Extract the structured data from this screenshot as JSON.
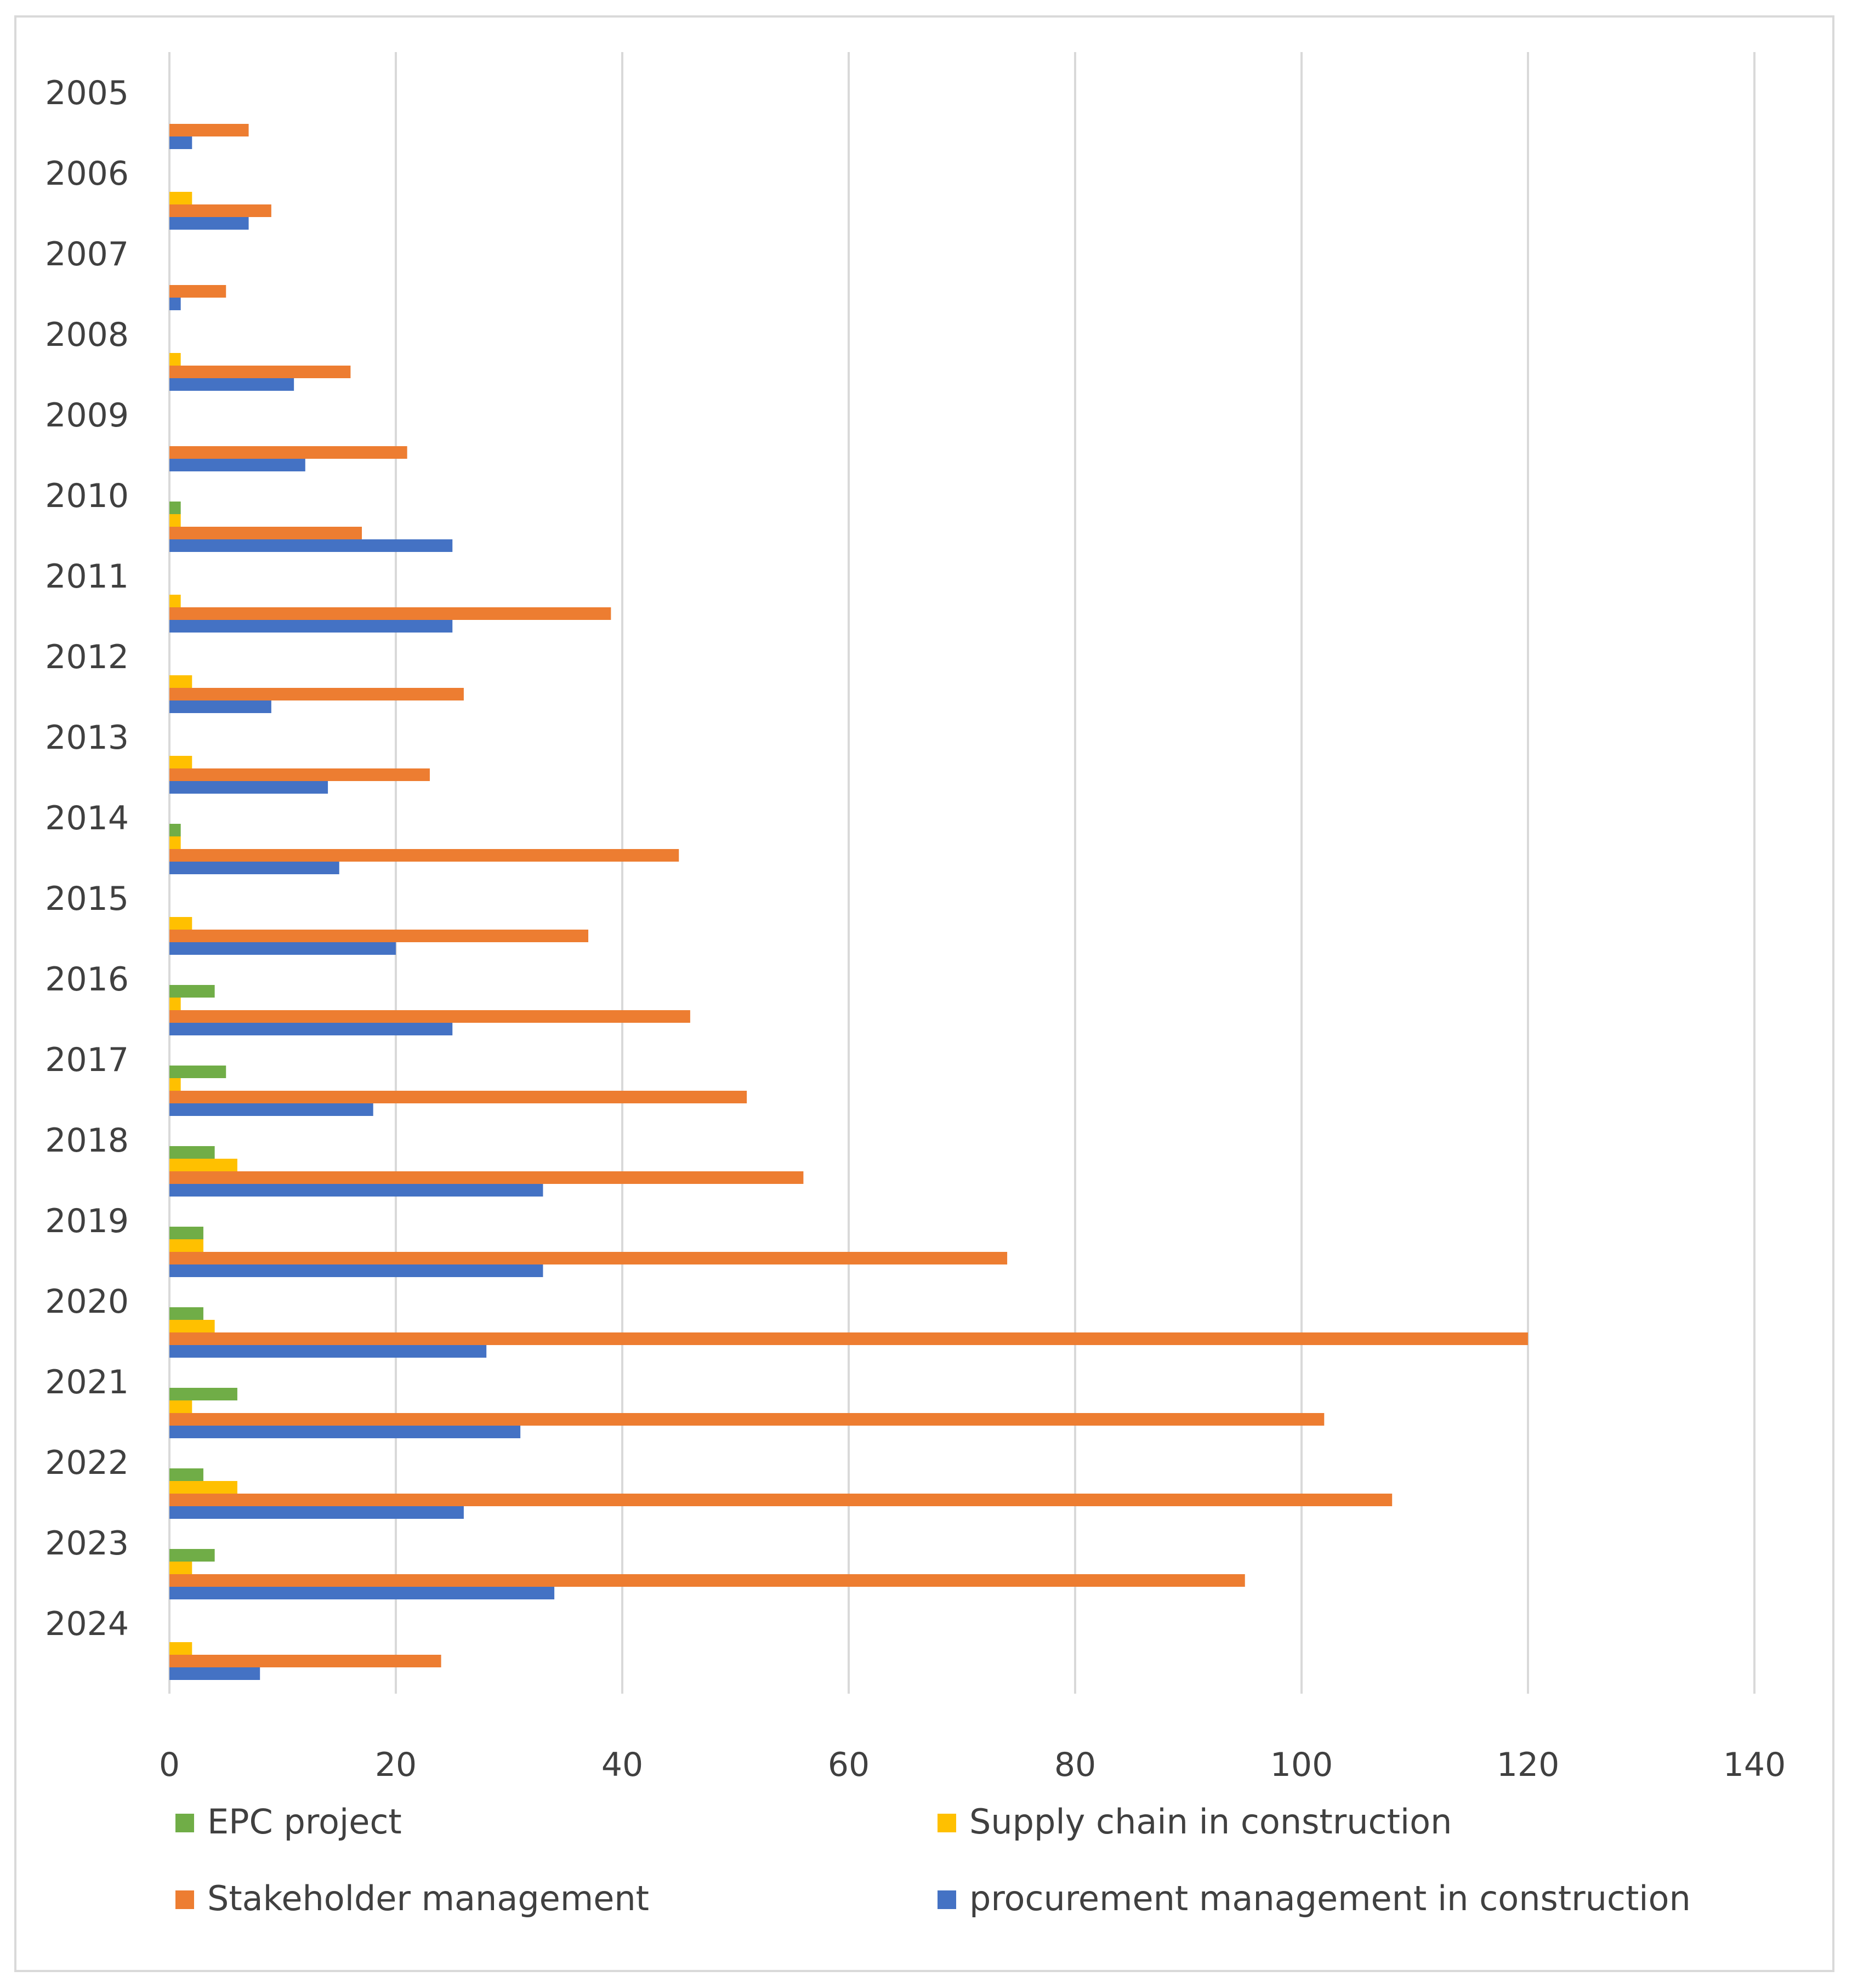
{
  "chart_data": {
    "type": "bar",
    "orientation": "horizontal",
    "title": "",
    "xlabel": "",
    "ylabel": "",
    "xlim": [
      0,
      140
    ],
    "x_ticks": [
      "0",
      "20",
      "40",
      "60",
      "80",
      "100",
      "120",
      "140"
    ],
    "grid": "vertical",
    "legend_position": "bottom",
    "categories": [
      "2005",
      "2006",
      "2007",
      "2008",
      "2009",
      "2010",
      "2011",
      "2012",
      "2013",
      "2014",
      "2015",
      "2016",
      "2017",
      "2018",
      "2019",
      "2020",
      "2021",
      "2022",
      "2023",
      "2024"
    ],
    "series": [
      {
        "name": "EPC project",
        "color": "#70ad47",
        "values": [
          0,
          0,
          0,
          0,
          0,
          1,
          0,
          0,
          0,
          1,
          0,
          4,
          5,
          4,
          3,
          3,
          6,
          3,
          4,
          0
        ]
      },
      {
        "name": "Supply chain in construction",
        "color": "#ffc000",
        "values": [
          0,
          2,
          0,
          1,
          0,
          1,
          1,
          2,
          2,
          1,
          2,
          1,
          1,
          6,
          3,
          4,
          2,
          6,
          2,
          2
        ]
      },
      {
        "name": "Stakeholder management",
        "color": "#ed7d31",
        "values": [
          7,
          9,
          5,
          16,
          21,
          17,
          39,
          26,
          23,
          45,
          37,
          46,
          51,
          56,
          74,
          120,
          102,
          108,
          95,
          24
        ]
      },
      {
        "name": "procurement management in construction",
        "color": "#4472c4",
        "values": [
          2,
          7,
          1,
          11,
          12,
          25,
          25,
          9,
          14,
          15,
          20,
          25,
          18,
          33,
          33,
          28,
          31,
          26,
          34,
          8
        ]
      }
    ]
  }
}
